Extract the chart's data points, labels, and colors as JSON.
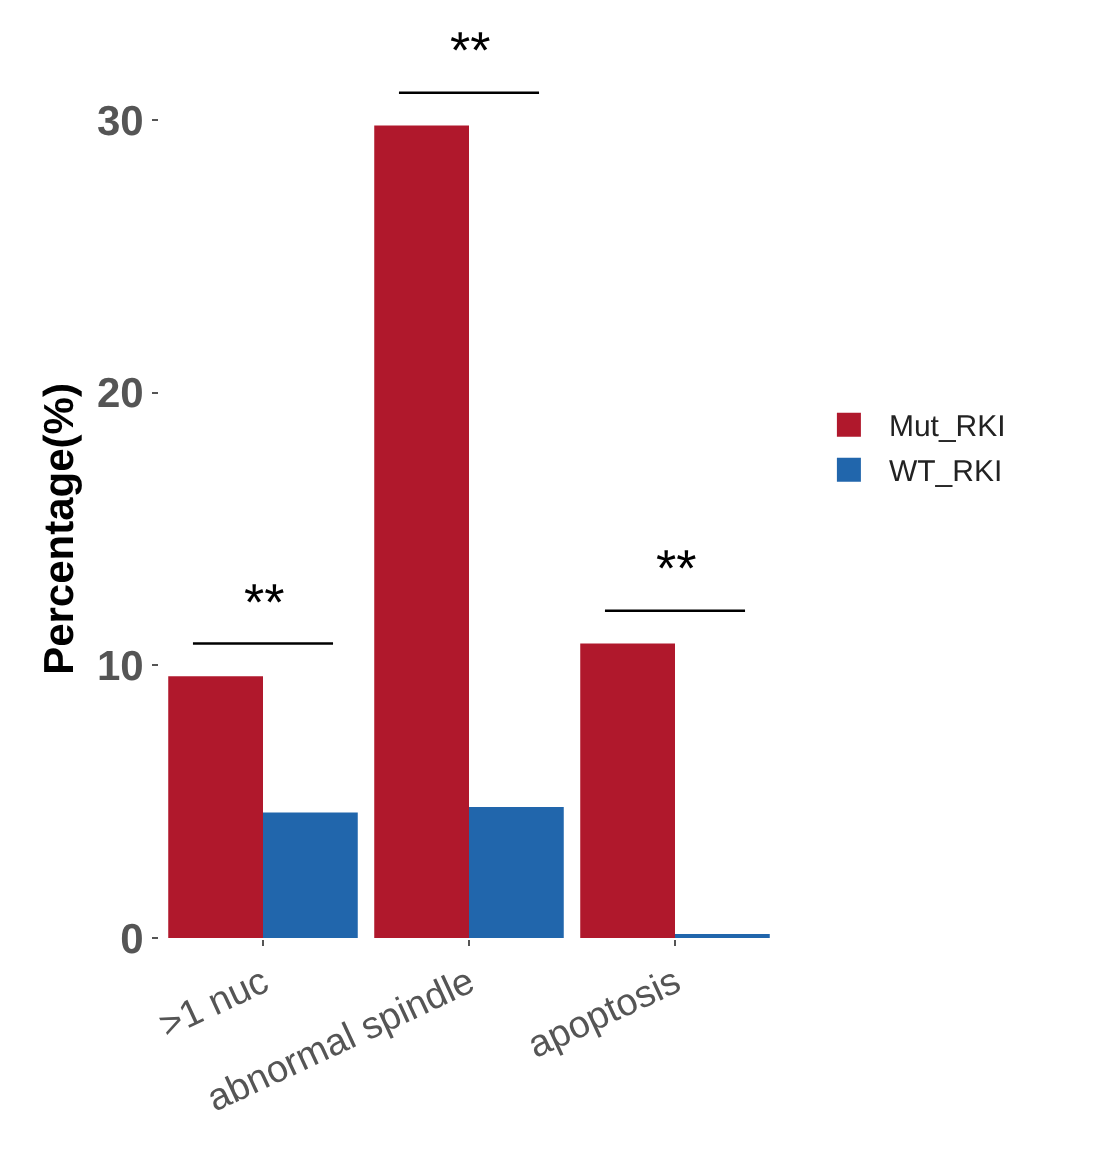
{
  "chart_data": {
    "type": "bar",
    "ylabel": "Percentage(%)",
    "categories": [
      ">1 nuc",
      "abnormal spindle",
      "apoptosis"
    ],
    "series": [
      {
        "name": "Mut_RKI",
        "color": "#b0182c",
        "values": [
          9.6,
          29.8,
          10.8
        ]
      },
      {
        "name": "WT_RKI",
        "color": "#2166ac",
        "values": [
          4.6,
          4.8,
          0.1
        ]
      }
    ],
    "ylim": [
      0,
      30
    ],
    "yticks": [
      0,
      10,
      20,
      30
    ],
    "legend": "right",
    "annotations": [
      "**",
      "**",
      "**"
    ]
  }
}
